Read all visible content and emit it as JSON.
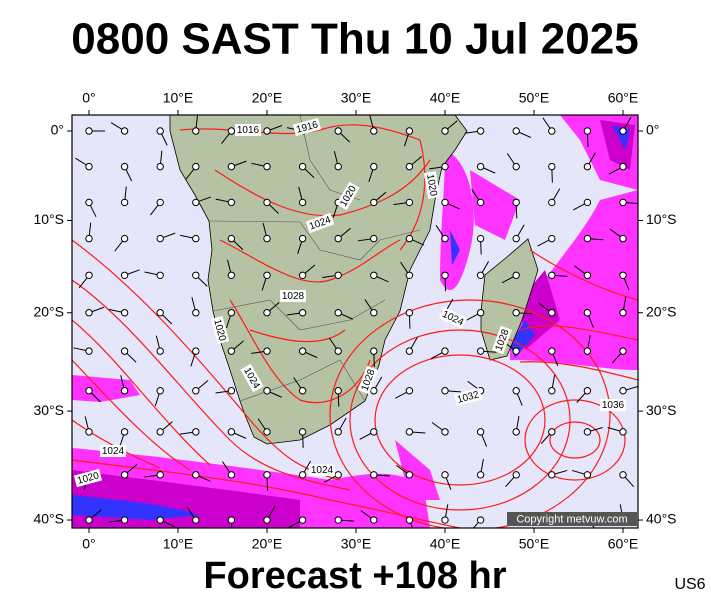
{
  "header": {
    "title": "0800 SAST Thu 10 Jul 2025"
  },
  "footer": {
    "forecast": "Forecast +108 hr",
    "code": "US6"
  },
  "map": {
    "lon_ticks": [
      {
        "value": 0,
        "label": "0°"
      },
      {
        "value": 10,
        "label": "10°E"
      },
      {
        "value": 20,
        "label": "20°E"
      },
      {
        "value": 30,
        "label": "30°E"
      },
      {
        "value": 40,
        "label": "40°E"
      },
      {
        "value": 50,
        "label": "50°E"
      },
      {
        "value": 60,
        "label": "60°E"
      }
    ],
    "lat_ticks": [
      {
        "value": 0,
        "label": "0°"
      },
      {
        "value": -10,
        "label": "10°S"
      },
      {
        "value": -20,
        "label": "20°S"
      },
      {
        "value": -30,
        "label": "30°S"
      },
      {
        "value": -40,
        "label": "40°S"
      }
    ],
    "isobar_labels": [
      "1016",
      "1916",
      "1020",
      "1020",
      "1024",
      "1028",
      "1020",
      "1024",
      "1028",
      "1024",
      "1028",
      "1032",
      "1036",
      "1024",
      "1020",
      "1024"
    ],
    "copyright": "Copyright metvuw.com"
  }
}
